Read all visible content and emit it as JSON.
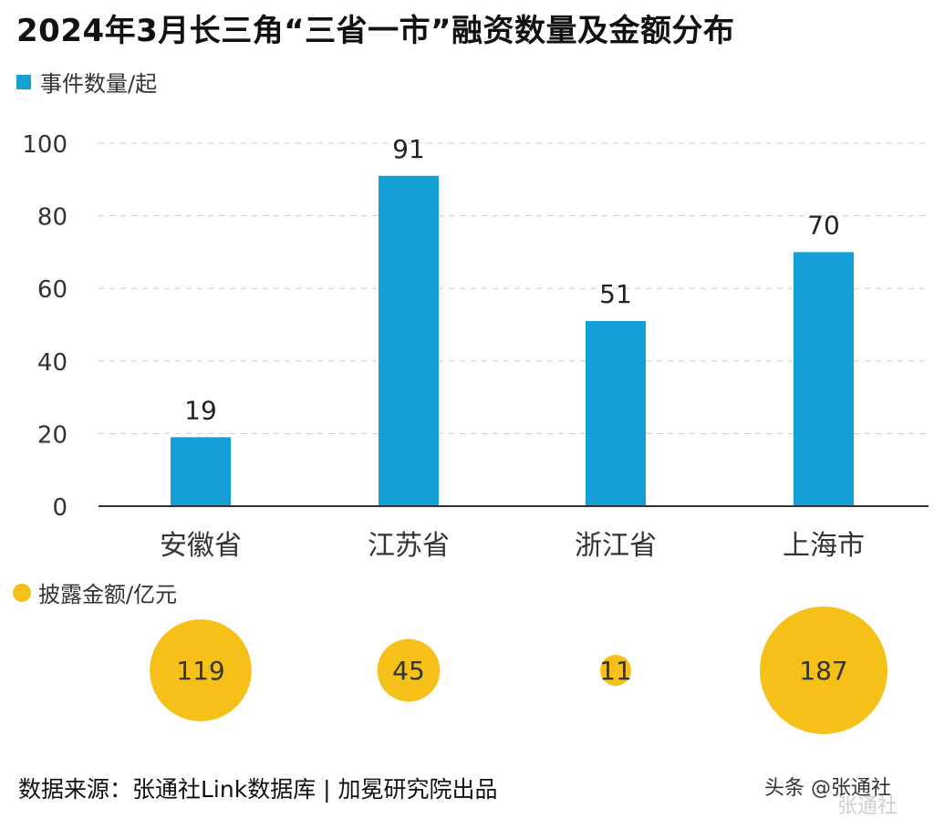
{
  "title": "2024年3月长三角“三省一市”融资数量及金额分布",
  "legend_count": "事件数量/起",
  "legend_amount": "披露金额/亿元",
  "source": "数据来源：张通社Link数据库 | 加冕研究院出品",
  "watermark": "头条 @张通社",
  "watermark_logo": "张通社",
  "colors": {
    "bar": "#159fd7",
    "bubble": "#f5c118",
    "axis": "#333333",
    "grid": "#cccccc"
  },
  "chart_data": [
    {
      "type": "bar",
      "categories": [
        "安徽省",
        "江苏省",
        "浙江省",
        "上海市"
      ],
      "series": [
        {
          "name": "事件数量/起",
          "values": [
            19,
            91,
            51,
            70
          ]
        }
      ],
      "yticks": [
        0,
        20,
        40,
        60,
        80,
        100
      ],
      "ylim": [
        0,
        100
      ],
      "grid": true
    },
    {
      "type": "scatter",
      "categories": [
        "安徽省",
        "江苏省",
        "浙江省",
        "上海市"
      ],
      "series": [
        {
          "name": "披露金额/亿元",
          "values": [
            119,
            45,
            11,
            187
          ]
        }
      ]
    }
  ]
}
